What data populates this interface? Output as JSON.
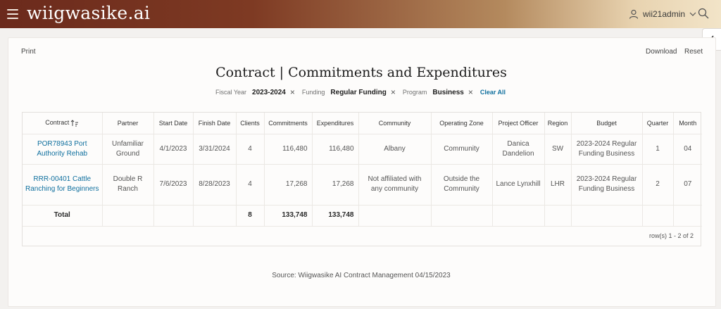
{
  "header": {
    "logo": "wiigwasike.ai",
    "username": "wii21admin"
  },
  "actions": {
    "print": "Print",
    "download": "Download",
    "reset": "Reset"
  },
  "report": {
    "title": "Contract | Commitments and Expenditures",
    "filters": [
      {
        "label": "Fiscal Year",
        "value": "2023-2024"
      },
      {
        "label": "Funding",
        "value": "Regular Funding"
      },
      {
        "label": "Program",
        "value": "Business"
      }
    ],
    "clear_all": "Clear All",
    "columns": [
      "Contract",
      "Partner",
      "Start Date",
      "Finish Date",
      "Clients",
      "Commitments",
      "Expenditures",
      "Community",
      "Operating Zone",
      "Project Officer",
      "Region",
      "Budget",
      "Quarter",
      "Month"
    ],
    "rows": [
      [
        "POR78943 Port Authority Rehab",
        "Unfamiliar Ground",
        "4/1/2023",
        "3/31/2024",
        "4",
        "116,480",
        "116,480",
        "Albany",
        "Community",
        "Danica Dandelion",
        "SW",
        "2023-2024 Regular Funding Business",
        "1",
        "04"
      ],
      [
        "RRR-00401 Cattle Ranching for Beginners",
        "Double R Ranch",
        "7/6/2023",
        "8/28/2023",
        "4",
        "17,268",
        "17,268",
        "Not affiliated with any community",
        "Outside the Community",
        "Lance Lynxhill",
        "LHR",
        "2023-2024 Regular Funding Business",
        "2",
        "07"
      ]
    ],
    "totals": {
      "label": "Total",
      "clients": "8",
      "commitments": "133,748",
      "expenditures": "133,748"
    },
    "rows_info": "row(s) 1 - 2 of 2",
    "source": "Source: Wiigwasike AI Contract Management 04/15/2023"
  },
  "colors": {
    "link": "#0f6f9e",
    "header_start": "#6b2a1c",
    "header_end": "#f2e4c8"
  }
}
